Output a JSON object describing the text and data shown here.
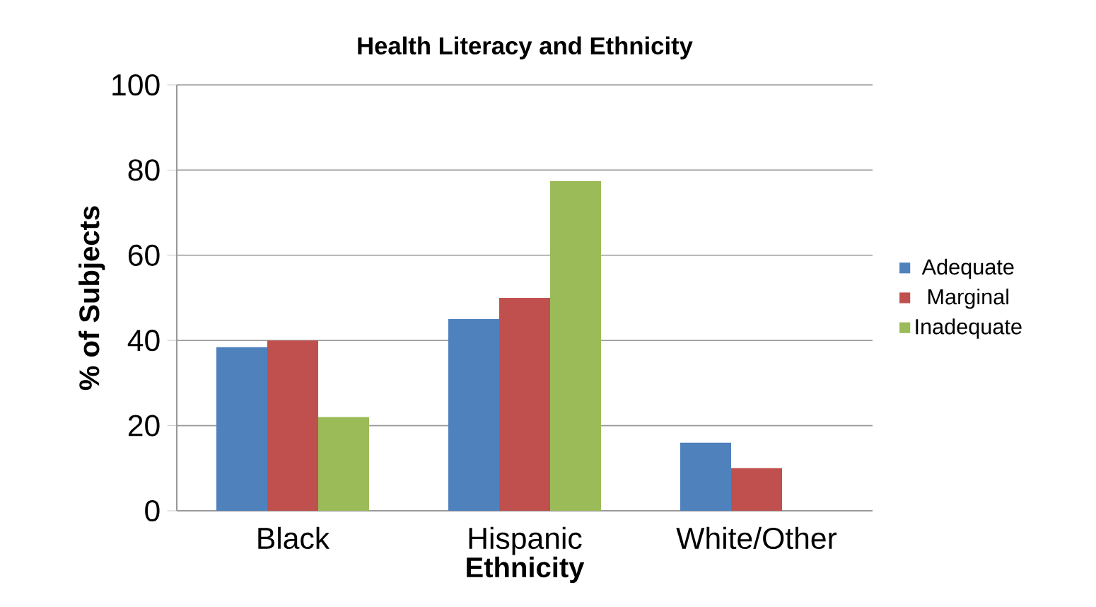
{
  "chart_data": {
    "type": "bar",
    "title": "Health Literacy and Ethnicity",
    "xlabel": "Ethnicity",
    "ylabel": "% of Subjects",
    "categories": [
      "Black",
      "Hispanic",
      "White/Other"
    ],
    "series": [
      {
        "name": "Adequate",
        "color": "#4f81bd",
        "values": [
          38.4,
          45,
          16
        ]
      },
      {
        "name": "Marginal",
        "color": "#c0504d",
        "values": [
          40,
          50,
          10
        ]
      },
      {
        "name": "Inadequate",
        "color": "#9bbb59",
        "values": [
          22,
          77.4,
          0
        ]
      }
    ],
    "ylim": [
      0,
      100
    ],
    "yticks": [
      0,
      20,
      40,
      60,
      80,
      100
    ],
    "grid": "y",
    "legend": "right"
  }
}
